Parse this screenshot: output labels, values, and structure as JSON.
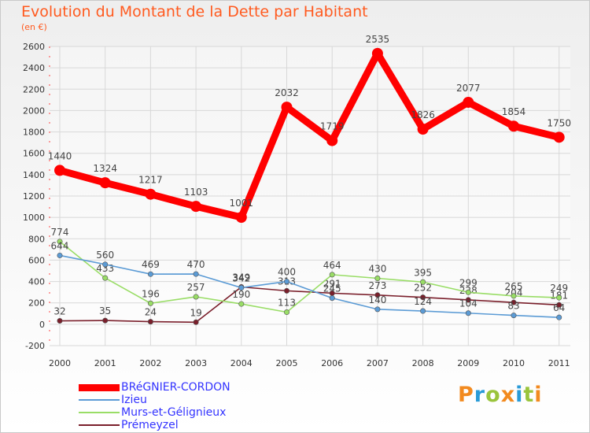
{
  "header": {
    "title": "Evolution du Montant de la Dette par Habitant",
    "subtitle": "(en €)"
  },
  "brand": {
    "logo_text": "Proxiti",
    "colors": [
      "#f28a1f",
      "#2a9bd7",
      "#9ac43c",
      "#f28a1f",
      "#2a9bd7",
      "#9ac43c",
      "#f28a1f"
    ]
  },
  "chart_data": {
    "type": "line",
    "x": [
      "2000",
      "2001",
      "2002",
      "2003",
      "2004",
      "2005",
      "2006",
      "2007",
      "2008",
      "2009",
      "2010",
      "2011"
    ],
    "ylim": [
      -200,
      2600
    ],
    "yticks": [
      "-200",
      "0",
      "200",
      "400",
      "600",
      "800",
      "1000",
      "1200",
      "1400",
      "1600",
      "1800",
      "2000",
      "2200",
      "2400",
      "2600"
    ],
    "grid": true,
    "legend_position": "bottom-left",
    "series": [
      {
        "name": "BRéGNIER-CORDON",
        "color": "#ff0000",
        "emphasis": true,
        "values": [
          1440,
          1324,
          1217,
          1103,
          1001,
          2032,
          1719,
          2535,
          1826,
          2077,
          1854,
          1750
        ],
        "labels": [
          "1440",
          "1324",
          "1217",
          "1103",
          "1001",
          "2032",
          "1719",
          "2535",
          "1826",
          "2077",
          "1854",
          "1750"
        ]
      },
      {
        "name": "Izieu",
        "color": "#5b9bd5",
        "emphasis": false,
        "values": [
          644,
          560,
          469,
          470,
          342,
          400,
          245,
          140,
          124,
          104,
          83,
          64
        ],
        "labels": [
          "644",
          "560",
          "469",
          "470",
          "342",
          "400",
          "245",
          "140",
          "124",
          "104",
          "83",
          "64"
        ]
      },
      {
        "name": "Murs-et-Gélignieux",
        "color": "#99dd66",
        "emphasis": false,
        "values": [
          774,
          433,
          196,
          257,
          190,
          113,
          464,
          430,
          395,
          299,
          265,
          249
        ],
        "labels": [
          "774",
          "433",
          "196",
          "257",
          "190",
          "113",
          "464",
          "430",
          "395",
          "299",
          "265",
          "249"
        ]
      },
      {
        "name": "Prémeyzel",
        "color": "#7a1f2b",
        "emphasis": false,
        "values": [
          32,
          35,
          24,
          19,
          349,
          313,
          291,
          273,
          252,
          228,
          204,
          181
        ],
        "labels": [
          "32",
          "35",
          "24",
          "19",
          "349",
          "313",
          "291",
          "273",
          "252",
          "228",
          "204",
          "181"
        ]
      }
    ]
  }
}
